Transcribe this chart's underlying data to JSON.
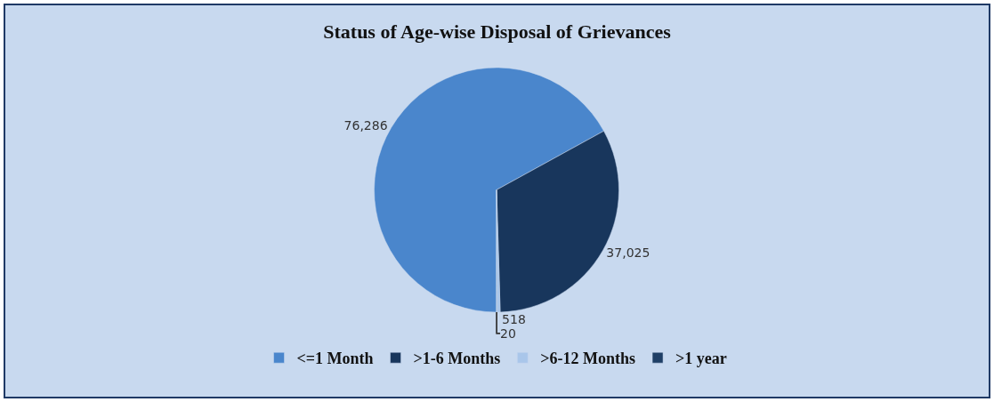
{
  "chart_data": {
    "type": "pie",
    "title": "Status of Age-wise Disposal of Grievances",
    "categories": [
      "<=1 Month",
      ">1-6 Months",
      ">6-12 Months",
      ">1 year"
    ],
    "values": [
      76286,
      37025,
      518,
      20
    ],
    "value_labels": [
      "76,286",
      "37,025",
      "518",
      "20"
    ],
    "colors": [
      "#4a86cc",
      "#18365c",
      "#a9c6ea",
      "#1f3f66"
    ],
    "legend": "bottom"
  }
}
